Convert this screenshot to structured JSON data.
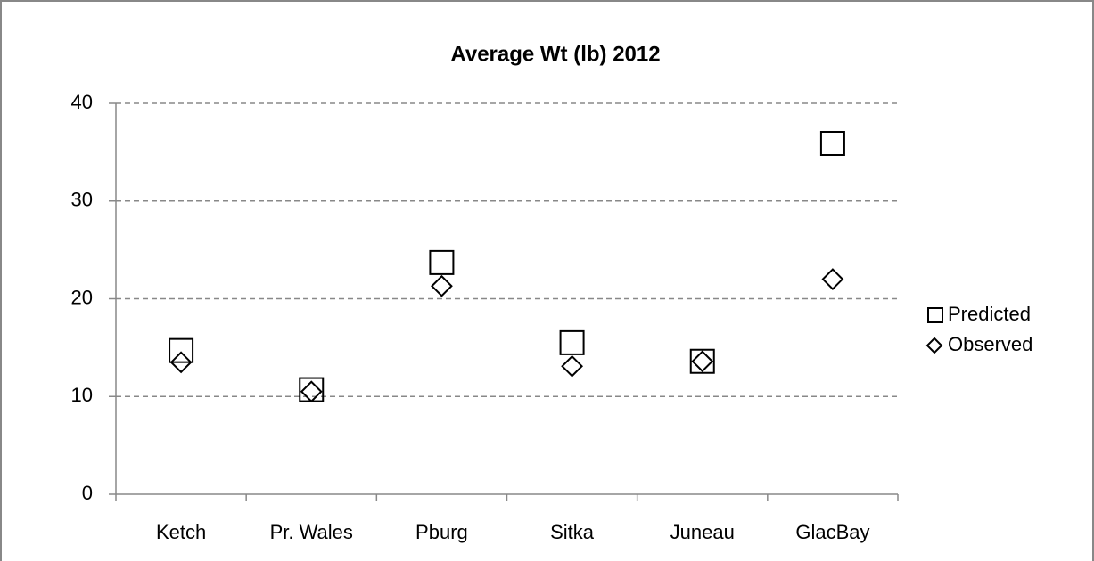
{
  "chart_data": {
    "type": "scatter",
    "title": "Average Wt (lb) 2012",
    "categories": [
      "Ketch",
      "Pr. Wales",
      "Pburg",
      "Sitka",
      "Juneau",
      "GlacBay"
    ],
    "series": [
      {
        "name": "Predicted",
        "marker": "square",
        "color": "#000000",
        "values": [
          14.7,
          10.7,
          23.7,
          15.5,
          13.6,
          35.9
        ]
      },
      {
        "name": "Observed",
        "marker": "diamond",
        "color": "#000000",
        "values": [
          13.5,
          10.5,
          21.3,
          13.1,
          13.6,
          22.0
        ]
      }
    ],
    "ylim": [
      0,
      40
    ],
    "yticks": [
      0,
      10,
      20,
      30,
      40
    ],
    "grid": true,
    "legend": "right"
  }
}
